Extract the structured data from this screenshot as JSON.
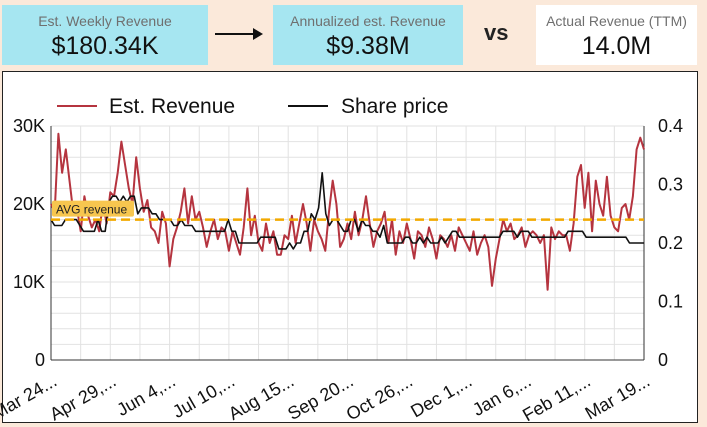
{
  "kpis": {
    "weekly": {
      "label": "Est. Weekly Revenue",
      "value": "$180.34K"
    },
    "annualized": {
      "label": "Annualized est. Revenue",
      "value": "$9.38M"
    },
    "vs": "vs",
    "actual": {
      "label": "Actual Revenue (TTM)",
      "value": "14.0M"
    }
  },
  "colors": {
    "revenue": "#b5343f",
    "price": "#111111",
    "avg_line": "#f2a900",
    "kpi_bg": "#a6e6f1",
    "page_bg": "#fbe9da"
  },
  "chart_data": {
    "type": "line",
    "title": "",
    "legend_position": "top",
    "grid": true,
    "x_tick_labels": [
      "Mar 24...",
      "Apr 29,...",
      "Jun 4,...",
      "Jul 10,...",
      "Aug 15...",
      "Sep 20...",
      "Oct 26,...",
      "Dec 1,...",
      "Jan 6,...",
      "Feb 11,...",
      "Mar 19..."
    ],
    "y_left": {
      "range": [
        0,
        30000
      ],
      "tick_labels": [
        "0",
        "10K",
        "20K",
        "30K"
      ],
      "tick_values": [
        0,
        10000,
        20000,
        30000
      ]
    },
    "y_right": {
      "range": [
        0,
        0.4
      ],
      "tick_labels": [
        "0",
        "0.1",
        "0.2",
        "0.3",
        "0.4"
      ],
      "tick_values": [
        0,
        0.1,
        0.2,
        0.3,
        0.4
      ]
    },
    "avg_line": {
      "label": "AVG revenue",
      "value": 18000,
      "axis": "left"
    },
    "series": [
      {
        "name": "Est. Revenue",
        "axis": "left",
        "values": [
          20000,
          19000,
          29000,
          24000,
          27000,
          23000,
          19000,
          19500,
          16500,
          21000,
          18500,
          17000,
          18000,
          16500,
          20000,
          17500,
          21500,
          21000,
          24000,
          28000,
          25000,
          22000,
          20000,
          26000,
          22000,
          19000,
          20500,
          17000,
          16500,
          15000,
          19000,
          17500,
          12000,
          15500,
          17000,
          19000,
          22000,
          17500,
          21000,
          18000,
          19000,
          17000,
          14500,
          16500,
          18000,
          15500,
          17000,
          16500,
          14000,
          16500,
          15000,
          13500,
          17000,
          22000,
          16000,
          18500,
          15000,
          14000,
          17500,
          15000,
          16500,
          13500,
          13500,
          16000,
          15500,
          18500,
          15000,
          17500,
          20000,
          17500,
          14000,
          18000,
          16500,
          15500,
          14000,
          19000,
          23000,
          20000,
          14500,
          15500,
          17500,
          15500,
          19000,
          16000,
          18000,
          21000,
          17500,
          14500,
          16500,
          17500,
          19000,
          15000,
          18000,
          13500,
          16500,
          15000,
          17500,
          15500,
          13000,
          16500,
          16000,
          14500,
          17000,
          15500,
          13000,
          16000,
          15500,
          14500,
          16000,
          14000,
          17000,
          16000,
          15000,
          14000,
          16500,
          13500,
          15000,
          16000,
          14500,
          9500,
          13000,
          15500,
          18000,
          16500,
          17500,
          15500,
          16000,
          17000,
          14500,
          16000,
          16500,
          16000,
          15000,
          16000,
          9000,
          17000,
          15500,
          16500,
          16000,
          16000,
          14000,
          17500,
          23500,
          25000,
          19500,
          24000,
          16500,
          23000,
          20000,
          18500,
          23500,
          18500,
          17000,
          16500,
          19500,
          20000,
          18000,
          21000,
          27000,
          28500,
          27000
        ]
      },
      {
        "name": "Share price",
        "axis": "right",
        "values": [
          0.24,
          0.23,
          0.23,
          0.23,
          0.24,
          0.24,
          0.24,
          0.24,
          0.23,
          0.22,
          0.22,
          0.22,
          0.22,
          0.24,
          0.22,
          0.22,
          0.27,
          0.28,
          0.28,
          0.27,
          0.28,
          0.27,
          0.28,
          0.28,
          0.25,
          0.26,
          0.26,
          0.26,
          0.25,
          0.25,
          0.24,
          0.24,
          0.24,
          0.24,
          0.23,
          0.23,
          0.24,
          0.23,
          0.23,
          0.23,
          0.22,
          0.22,
          0.22,
          0.22,
          0.22,
          0.22,
          0.22,
          0.22,
          0.22,
          0.24,
          0.22,
          0.22,
          0.2,
          0.2,
          0.2,
          0.2,
          0.2,
          0.2,
          0.21,
          0.21,
          0.21,
          0.21,
          0.21,
          0.19,
          0.19,
          0.19,
          0.2,
          0.19,
          0.2,
          0.2,
          0.22,
          0.22,
          0.25,
          0.24,
          0.26,
          0.32,
          0.25,
          0.23,
          0.24,
          0.24,
          0.23,
          0.22,
          0.22,
          0.24,
          0.24,
          0.22,
          0.24,
          0.23,
          0.23,
          0.22,
          0.22,
          0.21,
          0.23,
          0.2,
          0.2,
          0.2,
          0.2,
          0.2,
          0.21,
          0.21,
          0.2,
          0.2,
          0.21,
          0.2,
          0.21,
          0.2,
          0.2,
          0.2,
          0.21,
          0.2,
          0.21,
          0.22,
          0.22,
          0.21,
          0.21,
          0.21,
          0.21,
          0.21,
          0.21,
          0.21,
          0.21,
          0.21,
          0.21,
          0.21,
          0.21,
          0.22,
          0.22,
          0.22,
          0.22,
          0.21,
          0.22,
          0.22,
          0.22,
          0.21,
          0.21,
          0.21,
          0.21,
          0.21,
          0.21,
          0.21,
          0.21,
          0.21,
          0.21,
          0.22,
          0.22,
          0.22,
          0.22,
          0.22,
          0.21,
          0.21,
          0.21,
          0.21,
          0.21,
          0.21,
          0.21,
          0.21,
          0.21,
          0.21,
          0.21,
          0.21,
          0.2,
          0.2,
          0.2,
          0.2,
          0.2
        ]
      }
    ]
  }
}
